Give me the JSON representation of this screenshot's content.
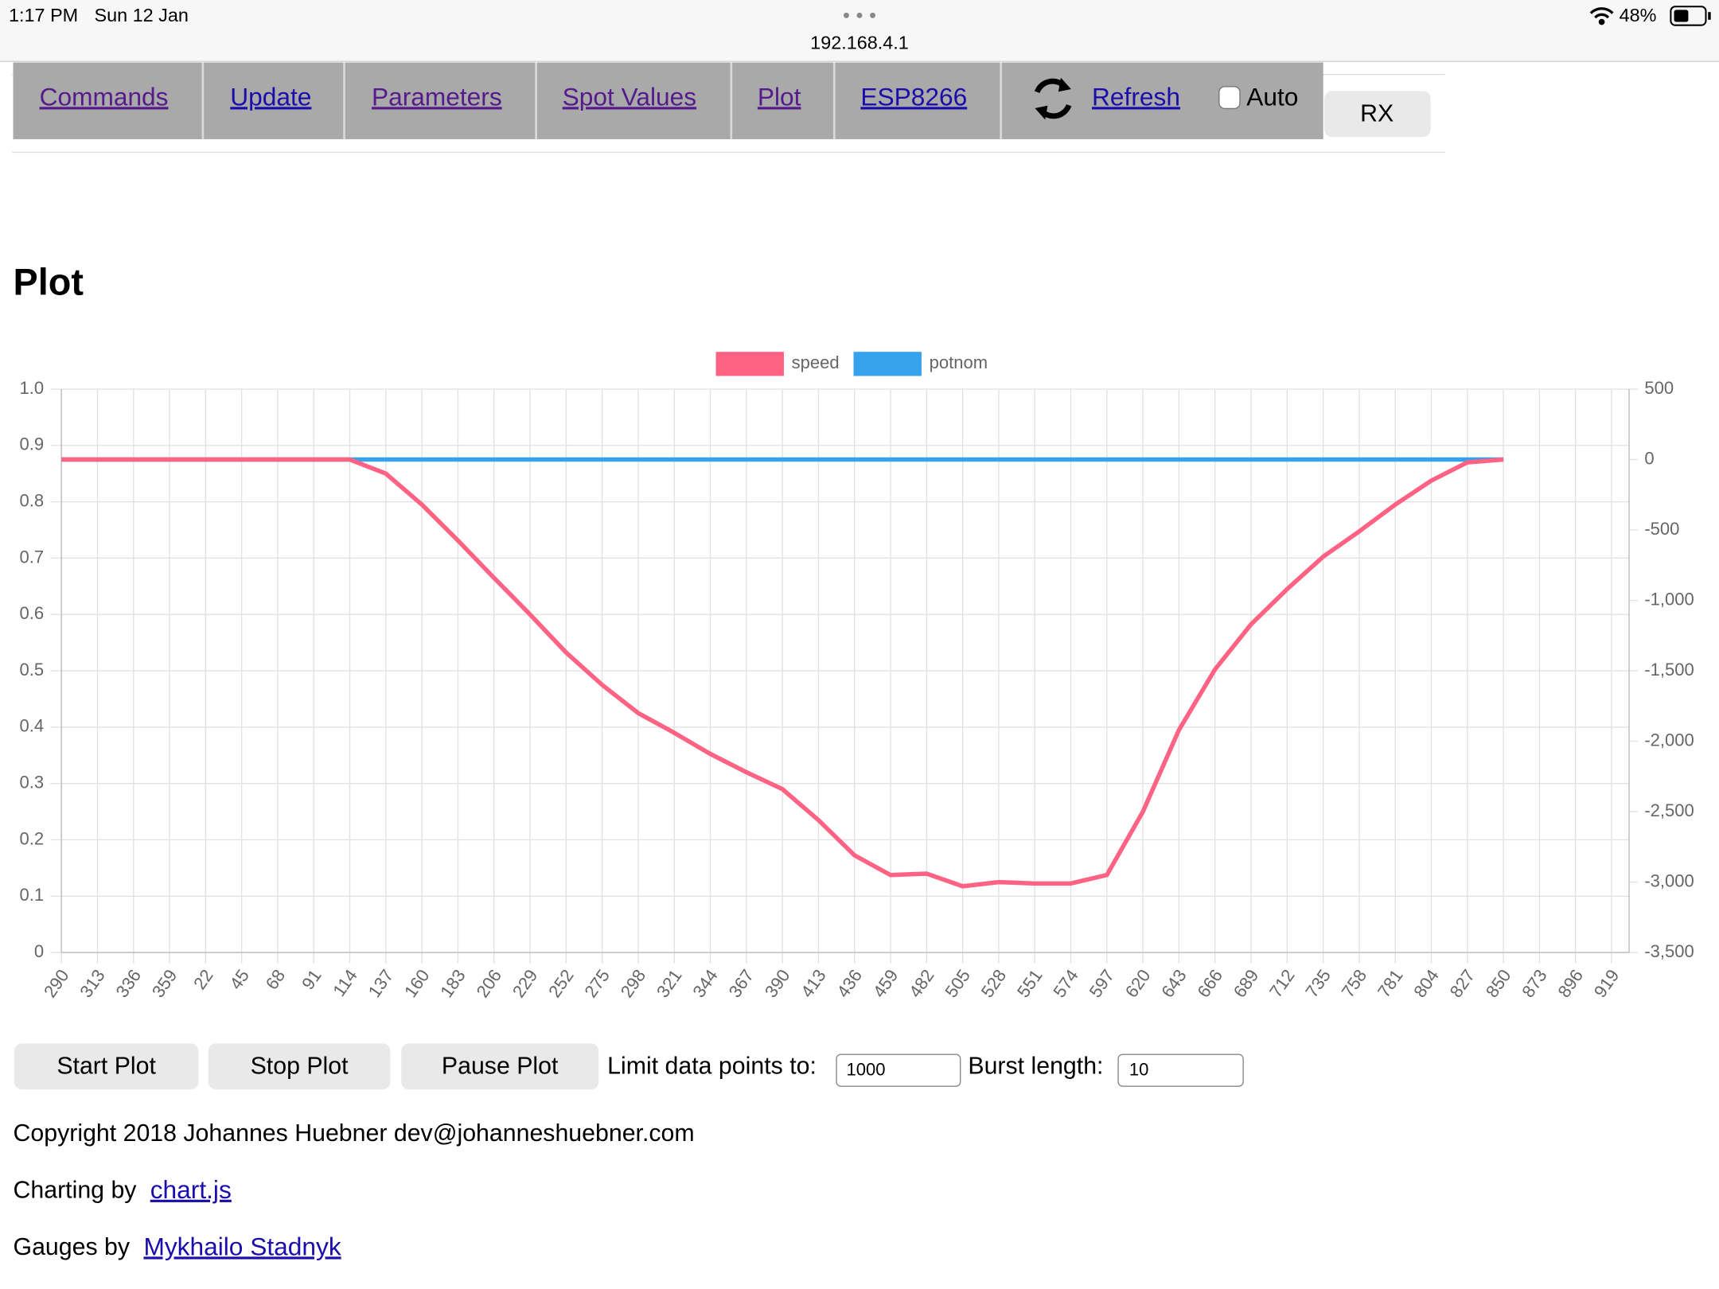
{
  "status_bar": {
    "time": "1:17 PM",
    "date": "Sun 12 Jan",
    "url": "192.168.4.1",
    "battery": "48%"
  },
  "nav": {
    "links": [
      "Commands",
      "Update",
      "Parameters",
      "Spot Values",
      "Plot",
      "ESP8266",
      "Refresh"
    ],
    "auto": "Auto",
    "rx": "RX"
  },
  "heading": "Plot",
  "chart_data": {
    "type": "line",
    "legend": "top",
    "categories": [
      290,
      313,
      336,
      359,
      22,
      45,
      68,
      91,
      114,
      137,
      160,
      183,
      206,
      229,
      252,
      275,
      298,
      321,
      344,
      367,
      390,
      413,
      436,
      459,
      482,
      505,
      528,
      551,
      574,
      597,
      620,
      643,
      666,
      689,
      712,
      735,
      758,
      781,
      804,
      827,
      850,
      873,
      896,
      919
    ],
    "ylim": [
      0,
      1
    ],
    "yticks": [
      0,
      0.1,
      0.2,
      0.3,
      0.4,
      0.5,
      0.6,
      0.7,
      0.8,
      0.9,
      {
        "value": 1,
        "label": "1.0"
      }
    ],
    "y2lim": [
      -3500,
      500
    ],
    "y2ticks": [
      {
        "value": -3500,
        "label": "-3,500"
      },
      {
        "value": -3000,
        "label": "-3,000"
      },
      {
        "value": -2500,
        "label": "-2,500"
      },
      {
        "value": -2000,
        "label": "-2,000"
      },
      {
        "value": -1500,
        "label": "-1,500"
      },
      {
        "value": -1000,
        "label": "-1,000"
      },
      -500,
      0,
      500
    ],
    "grid": true,
    "series": [
      {
        "name": "speed",
        "color": "#ff6384",
        "axis": "y2",
        "values": [
          0,
          0,
          0,
          0,
          0,
          0,
          0,
          0,
          0,
          -100,
          -320,
          -575,
          -840,
          -1100,
          -1370,
          -1600,
          -1800,
          -1940,
          -2090,
          -2220,
          -2340,
          -2560,
          -2810,
          -2950,
          -2940,
          -3030,
          -3000,
          -3010,
          -3010,
          -2950,
          -2500,
          -1920,
          -1490,
          -1170,
          -920,
          -690,
          -510,
          -320,
          -150,
          -20,
          0,
          null,
          null,
          null
        ]
      },
      {
        "name": "potnom",
        "color": "#36a2eb",
        "axis": "y2",
        "values": [
          0,
          0,
          0,
          0,
          0,
          0,
          0,
          0,
          0,
          0,
          0,
          0,
          0,
          0,
          0,
          0,
          0,
          0,
          0,
          0,
          0,
          0,
          0,
          0,
          0,
          0,
          0,
          0,
          0,
          0,
          0,
          0,
          0,
          0,
          0,
          0,
          0,
          0,
          0,
          0,
          0,
          null,
          null,
          null
        ]
      }
    ]
  },
  "controls": {
    "buttons": [
      "Start Plot",
      "Stop Plot",
      "Pause Plot"
    ],
    "limit_label": "Limit data points to:",
    "limit_value": 1000,
    "burst_label": "Burst length:",
    "burst_value": 10
  },
  "footer": {
    "copyright": "Copyright 2018 Johannes Huebner dev@johanneshuebner.com",
    "charting": "Charting by",
    "charting_link": "chart.js",
    "gauges": "Gauges by",
    "gauges_link": "Mykhailo Stadnyk"
  }
}
